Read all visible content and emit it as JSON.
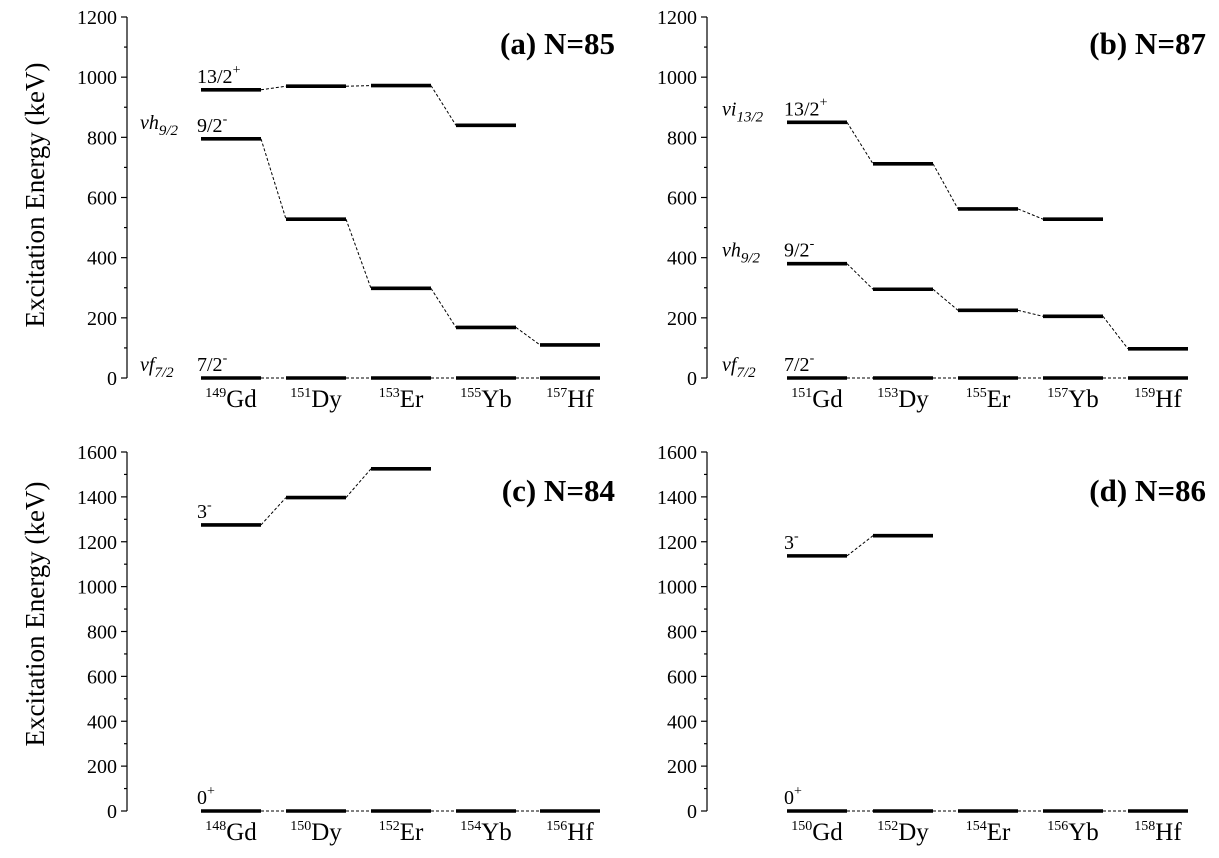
{
  "y_axis_label": "Excitation Energy (keV)",
  "chart_data": [
    {
      "type": "level-scheme",
      "title": "(a) N=85",
      "ylabel": "Excitation Energy (keV)",
      "ylim": [
        0,
        1200
      ],
      "yticks": [
        0,
        200,
        400,
        600,
        800,
        1000,
        1200
      ],
      "categories": [
        {
          "mass": "149",
          "element": "Gd"
        },
        {
          "mass": "151",
          "element": "Dy"
        },
        {
          "mass": "153",
          "element": "Er"
        },
        {
          "mass": "155",
          "element": "Yb"
        },
        {
          "mass": "157",
          "element": "Hf"
        }
      ],
      "series": [
        {
          "config": "vf",
          "config_sub": "7/2",
          "spin": "7/2",
          "parity": "-",
          "values": [
            0,
            0,
            0,
            0,
            0
          ]
        },
        {
          "config": "vh",
          "config_sub": "9/2",
          "spin": "9/2",
          "parity": "-",
          "values": [
            795,
            528,
            298,
            168,
            110
          ]
        },
        {
          "config": "",
          "config_sub": "",
          "spin": "13/2",
          "parity": "+",
          "values": [
            958,
            970,
            972,
            840,
            null
          ]
        }
      ]
    },
    {
      "type": "level-scheme",
      "title": "(b) N=87",
      "ylabel": "",
      "ylim": [
        0,
        1200
      ],
      "yticks": [
        0,
        200,
        400,
        600,
        800,
        1000,
        1200
      ],
      "categories": [
        {
          "mass": "151",
          "element": "Gd"
        },
        {
          "mass": "153",
          "element": "Dy"
        },
        {
          "mass": "155",
          "element": "Er"
        },
        {
          "mass": "157",
          "element": "Yb"
        },
        {
          "mass": "159",
          "element": "Hf"
        }
      ],
      "series": [
        {
          "config": "vf",
          "config_sub": "7/2",
          "spin": "7/2",
          "parity": "-",
          "values": [
            0,
            0,
            0,
            0,
            0
          ]
        },
        {
          "config": "vh",
          "config_sub": "9/2",
          "spin": "9/2",
          "parity": "-",
          "values": [
            380,
            295,
            225,
            205,
            97
          ]
        },
        {
          "config": "vi",
          "config_sub": "13/2",
          "spin": "13/2",
          "parity": "+",
          "values": [
            850,
            712,
            562,
            528,
            null
          ]
        }
      ]
    },
    {
      "type": "level-scheme",
      "title": "(c) N=84",
      "ylabel": "Excitation Energy (keV)",
      "ylim": [
        0,
        1600
      ],
      "yticks": [
        0,
        200,
        400,
        600,
        800,
        1000,
        1200,
        1400,
        1600
      ],
      "categories": [
        {
          "mass": "148",
          "element": "Gd"
        },
        {
          "mass": "150",
          "element": "Dy"
        },
        {
          "mass": "152",
          "element": "Er"
        },
        {
          "mass": "154",
          "element": "Yb"
        },
        {
          "mass": "156",
          "element": "Hf"
        }
      ],
      "series": [
        {
          "config": "",
          "config_sub": "",
          "spin": "0",
          "parity": "+",
          "values": [
            0,
            0,
            0,
            0,
            0
          ]
        },
        {
          "config": "",
          "config_sub": "",
          "spin": "3",
          "parity": "-",
          "values": [
            1275,
            1397,
            1525,
            null,
            null
          ]
        }
      ]
    },
    {
      "type": "level-scheme",
      "title": "(d) N=86",
      "ylabel": "",
      "ylim": [
        0,
        1600
      ],
      "yticks": [
        0,
        200,
        400,
        600,
        800,
        1000,
        1200,
        1400,
        1600
      ],
      "categories": [
        {
          "mass": "150",
          "element": "Gd"
        },
        {
          "mass": "152",
          "element": "Dy"
        },
        {
          "mass": "154",
          "element": "Er"
        },
        {
          "mass": "156",
          "element": "Yb"
        },
        {
          "mass": "158",
          "element": "Hf"
        }
      ],
      "series": [
        {
          "config": "",
          "config_sub": "",
          "spin": "0",
          "parity": "+",
          "values": [
            0,
            0,
            0,
            0,
            0
          ]
        },
        {
          "config": "",
          "config_sub": "",
          "spin": "3",
          "parity": "-",
          "values": [
            1137,
            1227,
            null,
            null,
            null
          ]
        }
      ]
    }
  ]
}
